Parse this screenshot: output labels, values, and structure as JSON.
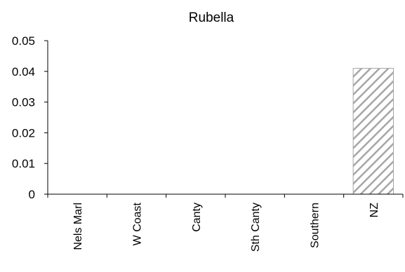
{
  "chart_data": {
    "type": "bar",
    "title": "Rubella",
    "categories": [
      "Nels Marl",
      "W Coast",
      "Canty",
      "Sth Canty",
      "Southern",
      "NZ"
    ],
    "values": [
      0,
      0,
      0,
      0,
      0,
      0.041
    ],
    "ylim": [
      0,
      0.05
    ],
    "yticks": [
      0,
      0.01,
      0.02,
      0.03,
      0.04,
      0.05
    ],
    "ytick_labels": [
      "0",
      "0.01",
      "0.02",
      "0.03",
      "0.04",
      "0.05"
    ],
    "xlabel": "",
    "ylabel": "",
    "grid": false,
    "bar_fill": "hatched",
    "colors": {
      "bar_stripe": "#a6a6a6",
      "bar_background": "#ffffff",
      "axis": "#000000",
      "text": "#000000"
    }
  }
}
